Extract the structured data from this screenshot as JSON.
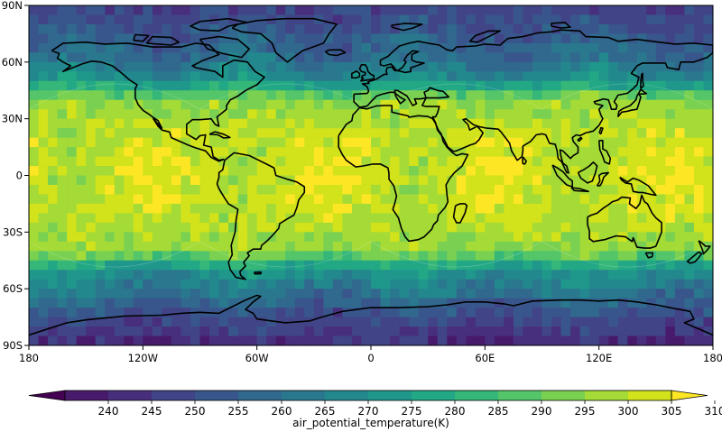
{
  "chart_data": {
    "type": "heatmap",
    "projection": "PlateCarree",
    "grid": "cubed-sphere (C12-like)",
    "xlim": [
      -180,
      180
    ],
    "ylim": [
      -90,
      90
    ],
    "x_ticks": [
      {
        "value": -180,
        "label": "180"
      },
      {
        "value": -120,
        "label": "120W"
      },
      {
        "value": -60,
        "label": "60W"
      },
      {
        "value": 0,
        "label": "0"
      },
      {
        "value": 60,
        "label": "60E"
      },
      {
        "value": 120,
        "label": "120E"
      },
      {
        "value": 180,
        "label": "180"
      }
    ],
    "y_ticks": [
      {
        "value": 90,
        "label": "90N"
      },
      {
        "value": 60,
        "label": "60N"
      },
      {
        "value": 30,
        "label": "30N"
      },
      {
        "value": 0,
        "label": "0"
      },
      {
        "value": -30,
        "label": "30S"
      },
      {
        "value": -60,
        "label": "60S"
      },
      {
        "value": -90,
        "label": "90S"
      }
    ],
    "field_profile": [
      {
        "lat": 90,
        "value": 252
      },
      {
        "lat": 75,
        "value": 258
      },
      {
        "lat": 60,
        "value": 266
      },
      {
        "lat": 50,
        "value": 276
      },
      {
        "lat": 40,
        "value": 300
      },
      {
        "lat": 20,
        "value": 306
      },
      {
        "lat": 0,
        "value": 307
      },
      {
        "lat": -20,
        "value": 306
      },
      {
        "lat": -40,
        "value": 300
      },
      {
        "lat": -50,
        "value": 277
      },
      {
        "lat": -60,
        "value": 268
      },
      {
        "lat": -75,
        "value": 255
      },
      {
        "lat": -90,
        "value": 246
      }
    ],
    "colorbar": {
      "label": "air_potential_temperature(K)",
      "levels": [
        235,
        240,
        245,
        250,
        255,
        260,
        265,
        270,
        275,
        280,
        285,
        290,
        295,
        300,
        305,
        310,
        315
      ],
      "tick_labels": [
        "240",
        "245",
        "250",
        "255",
        "260",
        "265",
        "270",
        "275",
        "280",
        "285",
        "290",
        "295",
        "300",
        "305",
        "310"
      ],
      "extend": "both",
      "colormap": "viridis",
      "colors": [
        "#440154",
        "#481a6c",
        "#472f7d",
        "#414487",
        "#39568c",
        "#31688e",
        "#2a788e",
        "#23888e",
        "#1f988b",
        "#22a884",
        "#35b779",
        "#54c568",
        "#7ad151",
        "#a5db36",
        "#d2e21b",
        "#fde725"
      ]
    },
    "coastlines": true
  }
}
